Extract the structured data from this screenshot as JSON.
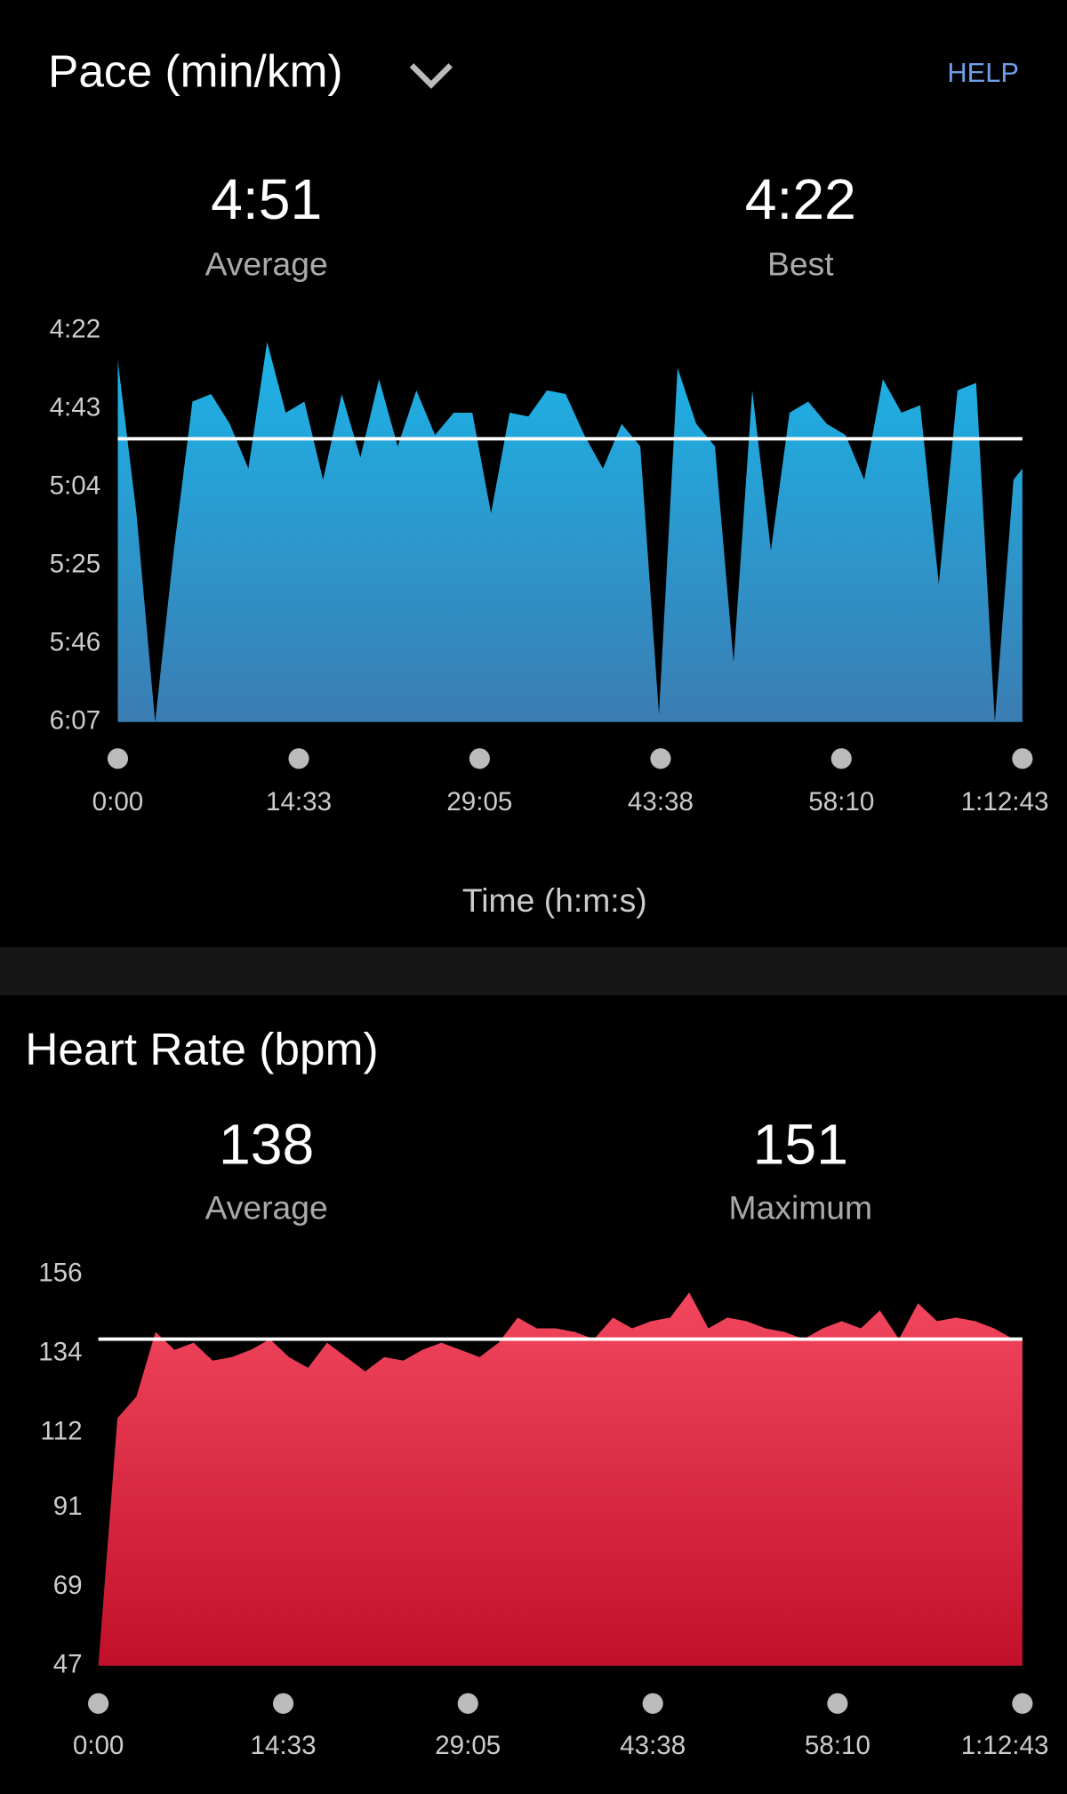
{
  "help": "HELP",
  "chart_data": [
    {
      "type": "area",
      "title": "Pace (min/km)",
      "xlabel": "Time (h:m:s)",
      "stats": [
        {
          "value": 291,
          "label": "4:51",
          "caption": "Average"
        },
        {
          "value": 262,
          "label": "4:22",
          "caption": "Best"
        }
      ],
      "x": [
        0,
        90,
        180,
        270,
        360,
        450,
        540,
        630,
        720,
        810,
        900,
        990,
        1080,
        1170,
        1260,
        1350,
        1440,
        1530,
        1620,
        1710,
        1800,
        1890,
        1980,
        2070,
        2160,
        2250,
        2340,
        2430,
        2520,
        2610,
        2700,
        2790,
        2880,
        2970,
        3060,
        3150,
        3240,
        3330,
        3420,
        3510,
        3600,
        3690,
        3780,
        3870,
        3960,
        4050,
        4140,
        4230,
        4320,
        4363
      ],
      "series": [
        {
          "color": "#1cb4e8",
          "color_end": "#3a7db3",
          "values": [
            270,
            311,
            367,
            321,
            281,
            279,
            287,
            299,
            265,
            284,
            281,
            302,
            279,
            296,
            275,
            293,
            278,
            290,
            284,
            284,
            311,
            284,
            285,
            278,
            279,
            290,
            299,
            287,
            293,
            365,
            272,
            287,
            293,
            351,
            278,
            321,
            284,
            281,
            287,
            290,
            302,
            275,
            284,
            282,
            330,
            278,
            276,
            367,
            302,
            299
          ]
        }
      ],
      "xlim": [
        0,
        4363
      ],
      "xticks": [
        {
          "value": 0,
          "label": "0:00"
        },
        {
          "value": 873,
          "label": "14:33"
        },
        {
          "value": 1745,
          "label": "29:05"
        },
        {
          "value": 2618,
          "label": "43:38"
        },
        {
          "value": 3490,
          "label": "58:10"
        },
        {
          "value": 4363,
          "label": "1:12:43"
        }
      ],
      "ylim": [
        367,
        262
      ],
      "yticks": [
        {
          "value": 262,
          "label": "4:22"
        },
        {
          "value": 283,
          "label": "4:43"
        },
        {
          "value": 304,
          "label": "5:04"
        },
        {
          "value": 325,
          "label": "5:25"
        },
        {
          "value": 346,
          "label": "5:46"
        },
        {
          "value": 367,
          "label": "6:07"
        }
      ]
    },
    {
      "type": "area",
      "title": "Heart Rate (bpm)",
      "stats": [
        {
          "value": 138,
          "caption": "Average"
        },
        {
          "value": 151,
          "caption": "Maximum"
        }
      ],
      "x": [
        0,
        90,
        180,
        270,
        360,
        450,
        540,
        630,
        720,
        810,
        900,
        990,
        1080,
        1170,
        1260,
        1350,
        1440,
        1530,
        1620,
        1710,
        1800,
        1890,
        1980,
        2070,
        2160,
        2250,
        2340,
        2430,
        2520,
        2610,
        2700,
        2790,
        2880,
        2970,
        3060,
        3150,
        3240,
        3330,
        3420,
        3510,
        3600,
        3690,
        3780,
        3870,
        3960,
        4050,
        4140,
        4230,
        4320,
        4363
      ],
      "series": [
        {
          "color": "#f2475f",
          "color_end": "#c3102a",
          "values": [
            47,
            116,
            122,
            140,
            135,
            137,
            132,
            133,
            135,
            138,
            133,
            130,
            137,
            133,
            129,
            133,
            132,
            135,
            137,
            135,
            133,
            137,
            144,
            141,
            141,
            140,
            138,
            144,
            141,
            143,
            144,
            151,
            141,
            144,
            143,
            141,
            140,
            138,
            141,
            143,
            141,
            146,
            138,
            148,
            143,
            144,
            143,
            141,
            138,
            138
          ]
        }
      ],
      "xlim": [
        0,
        4363
      ],
      "xticks": [
        {
          "value": 0,
          "label": "0:00"
        },
        {
          "value": 873,
          "label": "14:33"
        },
        {
          "value": 1745,
          "label": "29:05"
        },
        {
          "value": 2618,
          "label": "43:38"
        },
        {
          "value": 3490,
          "label": "58:10"
        },
        {
          "value": 4363,
          "label": "1:12:43"
        }
      ],
      "ylim": [
        47,
        156
      ],
      "yticks": [
        156,
        134,
        112,
        91,
        69,
        47
      ]
    }
  ]
}
